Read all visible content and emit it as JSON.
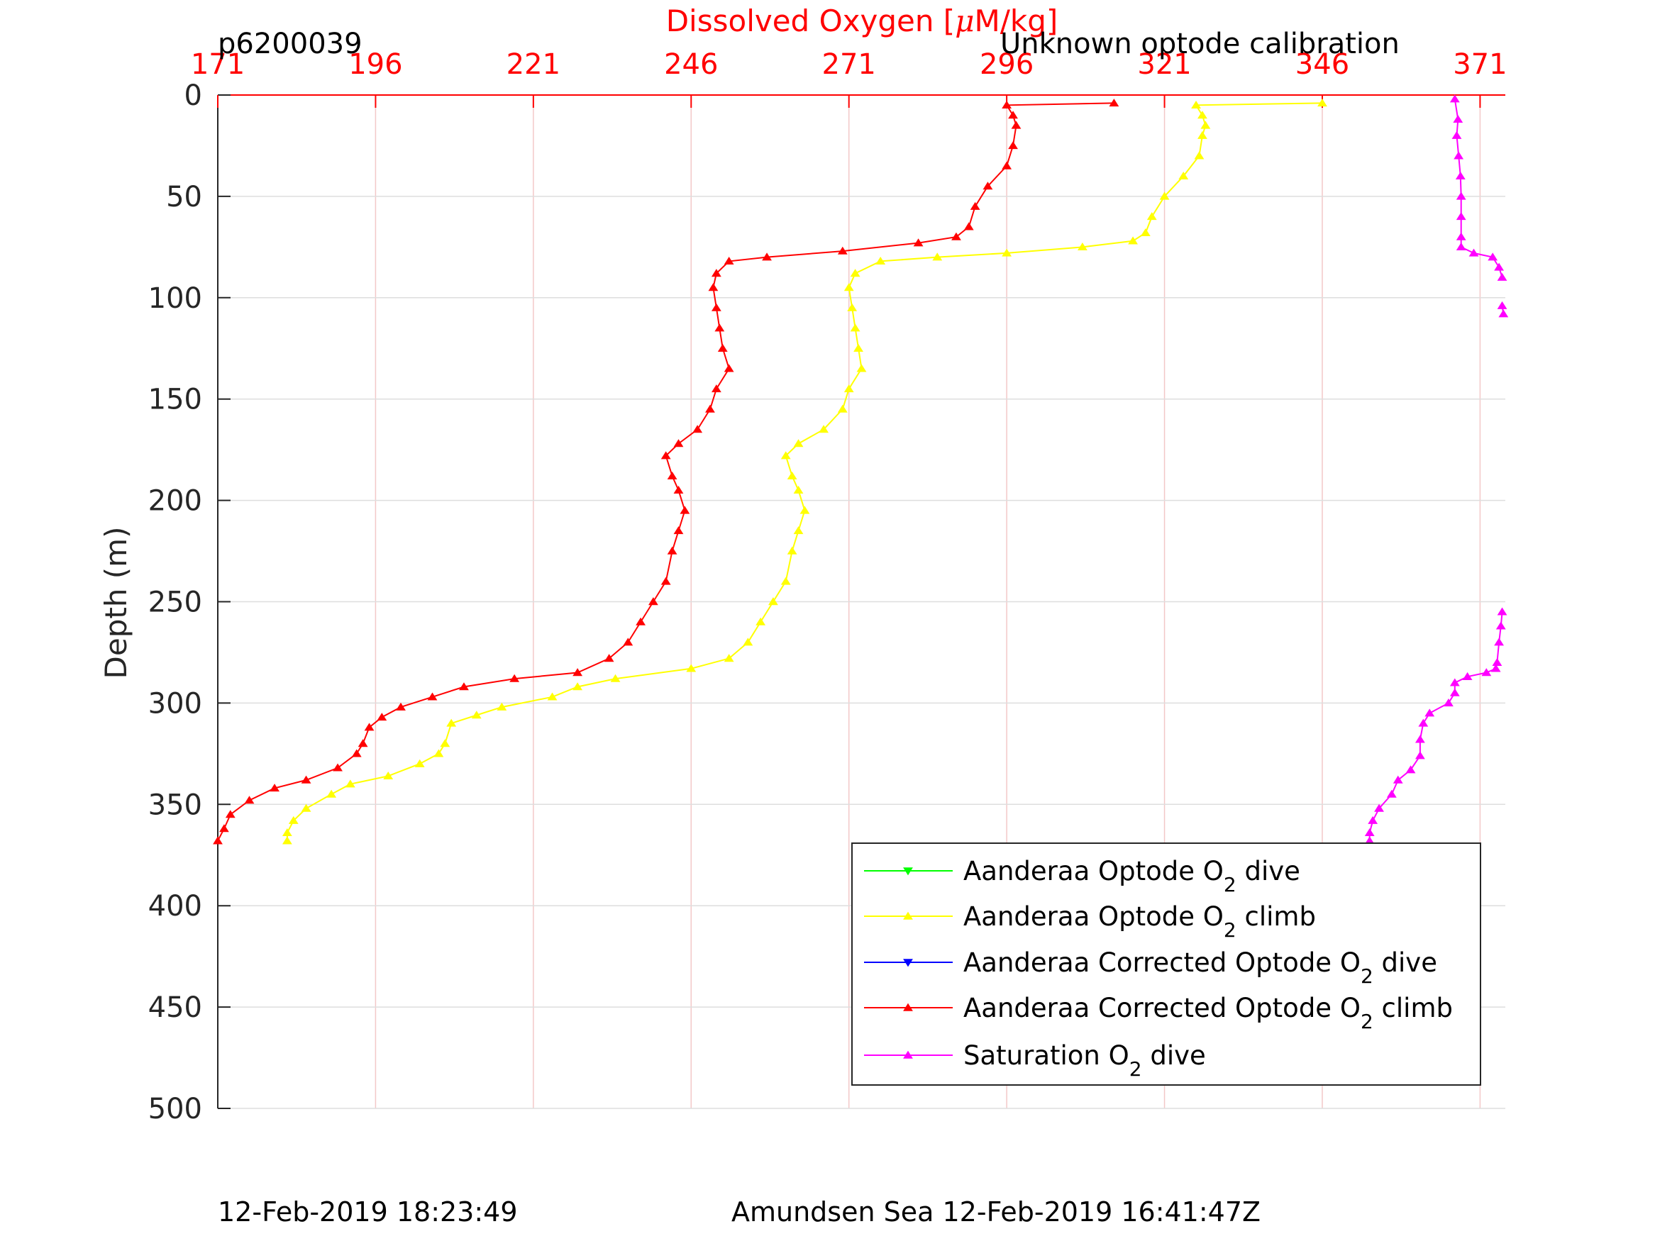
{
  "chart_data": {
    "type": "line",
    "title": "Dissolved Oxygen [μM/kg]",
    "title_parts": [
      "Dissolved Oxygen [",
      "μ",
      "M/kg]"
    ],
    "xlabel_top": "Dissolved Oxygen [μM/kg]",
    "ylabel": "Depth (m)",
    "top_left_text": "p6200039",
    "top_right_text": "Unknown optode calibration",
    "footer_left": "12-Feb-2019 18:23:49",
    "footer_right": "Amundsen Sea 12-Feb-2019 16:41:47Z",
    "xlim": [
      171,
      375
    ],
    "ylim": [
      0,
      500
    ],
    "y_reversed": true,
    "x_ticks": [
      "171",
      "196",
      "221",
      "246",
      "271",
      "296",
      "321",
      "346",
      "371"
    ],
    "x_tick_values": [
      171,
      196,
      221,
      246,
      271,
      296,
      321,
      346,
      371
    ],
    "y_ticks": [
      "0",
      "50",
      "100",
      "150",
      "200",
      "250",
      "300",
      "350",
      "400",
      "450",
      "500"
    ],
    "y_tick_values": [
      0,
      50,
      100,
      150,
      200,
      250,
      300,
      350,
      400,
      450,
      500
    ],
    "grid": true,
    "legend_position": "lower-right",
    "colors": {
      "axis": "#262626",
      "top_axis": "#ff0000",
      "grid_x": "#f3c8c8",
      "grid_y": "#dedede"
    },
    "legend": [
      {
        "label_main": "Aanderaa Optode O",
        "label_sub": "2",
        "label_tail": " dive",
        "color": "#00ff00",
        "marker": "down"
      },
      {
        "label_main": "Aanderaa Optode O",
        "label_sub": "2",
        "label_tail": " climb",
        "color": "#ffff00",
        "marker": "up"
      },
      {
        "label_main": "Aanderaa Corrected Optode O",
        "label_sub": "2",
        "label_tail": " dive",
        "color": "#0000ff",
        "marker": "down"
      },
      {
        "label_main": "Aanderaa Corrected Optode O",
        "label_sub": "2",
        "label_tail": " climb",
        "color": "#ff0000",
        "marker": "up"
      },
      {
        "label_main": "Saturation O",
        "label_sub": "2",
        "label_tail": " dive",
        "color": "#ff00ff",
        "marker": "up"
      }
    ],
    "series": [
      {
        "name": "Aanderaa Optode O2 climb",
        "color": "#ffff00",
        "marker": "up",
        "points": [
          [
            346,
            4
          ],
          [
            326,
            5
          ],
          [
            327,
            10
          ],
          [
            327.5,
            15
          ],
          [
            327,
            20
          ],
          [
            326.5,
            30
          ],
          [
            324,
            40
          ],
          [
            321,
            50
          ],
          [
            319,
            60
          ],
          [
            318,
            68
          ],
          [
            316,
            72
          ],
          [
            308,
            75
          ],
          [
            296,
            78
          ],
          [
            285,
            80
          ],
          [
            276,
            82
          ],
          [
            272,
            88
          ],
          [
            271,
            95
          ],
          [
            271.5,
            105
          ],
          [
            272,
            115
          ],
          [
            272.5,
            125
          ],
          [
            273,
            135
          ],
          [
            271,
            145
          ],
          [
            270,
            155
          ],
          [
            267,
            165
          ],
          [
            263,
            172
          ],
          [
            261,
            178
          ],
          [
            262,
            188
          ],
          [
            263,
            195
          ],
          [
            264,
            205
          ],
          [
            263,
            215
          ],
          [
            262,
            225
          ],
          [
            261,
            240
          ],
          [
            259,
            250
          ],
          [
            257,
            260
          ],
          [
            255,
            270
          ],
          [
            252,
            278
          ],
          [
            246,
            283
          ],
          [
            234,
            288
          ],
          [
            228,
            292
          ],
          [
            224,
            297
          ],
          [
            216,
            302
          ],
          [
            212,
            306
          ],
          [
            208,
            310
          ],
          [
            207,
            320
          ],
          [
            206,
            325
          ],
          [
            203,
            330
          ],
          [
            198,
            336
          ],
          [
            192,
            340
          ],
          [
            189,
            345
          ],
          [
            185,
            352
          ],
          [
            183,
            358
          ],
          [
            182,
            364
          ],
          [
            182,
            368
          ]
        ]
      },
      {
        "name": "Aanderaa Corrected Optode O2 climb",
        "color": "#ff0000",
        "marker": "up",
        "points": [
          [
            313,
            4
          ],
          [
            296,
            5
          ],
          [
            297,
            10
          ],
          [
            297.5,
            15
          ],
          [
            297,
            25
          ],
          [
            296,
            35
          ],
          [
            293,
            45
          ],
          [
            291,
            55
          ],
          [
            290,
            65
          ],
          [
            288,
            70
          ],
          [
            282,
            73
          ],
          [
            270,
            77
          ],
          [
            258,
            80
          ],
          [
            252,
            82
          ],
          [
            250,
            88
          ],
          [
            249.5,
            95
          ],
          [
            250,
            105
          ],
          [
            250.5,
            115
          ],
          [
            251,
            125
          ],
          [
            252,
            135
          ],
          [
            250,
            145
          ],
          [
            249,
            155
          ],
          [
            247,
            165
          ],
          [
            244,
            172
          ],
          [
            242,
            178
          ],
          [
            243,
            188
          ],
          [
            244,
            195
          ],
          [
            245,
            205
          ],
          [
            244,
            215
          ],
          [
            243,
            225
          ],
          [
            242,
            240
          ],
          [
            240,
            250
          ],
          [
            238,
            260
          ],
          [
            236,
            270
          ],
          [
            233,
            278
          ],
          [
            228,
            285
          ],
          [
            218,
            288
          ],
          [
            210,
            292
          ],
          [
            205,
            297
          ],
          [
            200,
            302
          ],
          [
            197,
            307
          ],
          [
            195,
            312
          ],
          [
            194,
            320
          ],
          [
            193,
            325
          ],
          [
            190,
            332
          ],
          [
            185,
            338
          ],
          [
            180,
            342
          ],
          [
            176,
            348
          ],
          [
            173,
            355
          ],
          [
            172,
            362
          ],
          [
            171,
            368
          ]
        ]
      },
      {
        "name": "Saturation O2 dive",
        "color": "#ff00ff",
        "marker": "up",
        "segments": [
          [
            [
              367,
              2
            ],
            [
              367.5,
              12
            ],
            [
              367.3,
              20
            ],
            [
              367.6,
              30
            ],
            [
              367.9,
              40
            ],
            [
              368,
              50
            ],
            [
              368,
              60
            ],
            [
              368,
              70
            ],
            [
              368,
              75
            ],
            [
              370,
              78
            ],
            [
              373,
              80
            ],
            [
              374,
              85
            ],
            [
              374.5,
              90
            ]
          ],
          [
            [
              374.5,
              104
            ],
            [
              374.7,
              108
            ]
          ],
          [
            [
              374.5,
              255
            ],
            [
              374.3,
              262
            ],
            [
              374,
              270
            ],
            [
              373.7,
              280
            ],
            [
              373.5,
              283
            ],
            [
              372,
              285
            ],
            [
              369,
              287
            ],
            [
              367,
              290
            ],
            [
              367,
              295
            ],
            [
              366,
              300
            ],
            [
              363,
              305
            ],
            [
              362,
              310
            ],
            [
              361.5,
              318
            ],
            [
              361.5,
              326
            ],
            [
              360,
              333
            ],
            [
              358,
              338
            ],
            [
              357,
              345
            ],
            [
              355,
              352
            ],
            [
              354,
              358
            ],
            [
              353.5,
              364
            ],
            [
              353.5,
              368
            ]
          ]
        ]
      }
    ]
  }
}
